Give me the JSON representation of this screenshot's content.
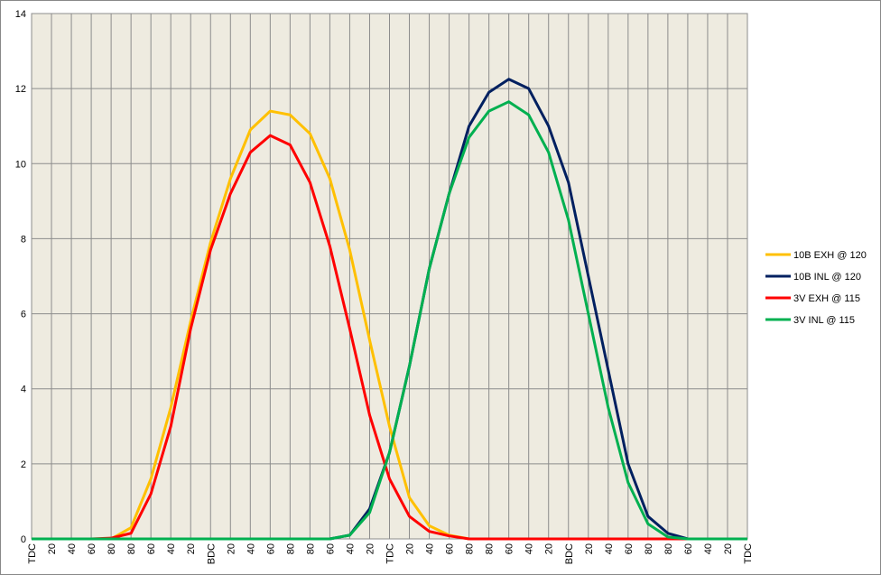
{
  "chart_data": {
    "type": "line",
    "categories": [
      "TDC",
      "20",
      "40",
      "60",
      "80",
      "80",
      "60",
      "40",
      "20",
      "BDC",
      "20",
      "40",
      "60",
      "80",
      "80",
      "60",
      "40",
      "20",
      "TDC",
      "20",
      "40",
      "60",
      "80",
      "80",
      "60",
      "40",
      "20",
      "BDC",
      "20",
      "40",
      "60",
      "80",
      "80",
      "60",
      "40",
      "20",
      "TDC"
    ],
    "series": [
      {
        "name": "10B EXH @ 120",
        "color": "#ffc000",
        "values": [
          0,
          0,
          0,
          0,
          0,
          0.3,
          1.6,
          3.5,
          5.8,
          7.9,
          9.6,
          10.9,
          11.4,
          11.3,
          10.8,
          9.6,
          7.7,
          5.3,
          3.0,
          1.1,
          0.35,
          0.1,
          0,
          0,
          0,
          0,
          0,
          0,
          0,
          0,
          0,
          0,
          0,
          0,
          0,
          0,
          0
        ]
      },
      {
        "name": "10B INL @ 120",
        "color": "#002060",
        "values": [
          0,
          0,
          0,
          0,
          0,
          0,
          0,
          0,
          0,
          0,
          0,
          0,
          0,
          0,
          0,
          0,
          0.1,
          0.8,
          2.3,
          4.6,
          7.2,
          9.2,
          11.0,
          11.9,
          12.25,
          12.0,
          11.0,
          9.5,
          7.0,
          4.5,
          2.0,
          0.6,
          0.15,
          0,
          0,
          0,
          0
        ]
      },
      {
        "name": "3V EXH @ 115",
        "color": "#ff0000",
        "values": [
          0,
          0,
          0,
          0,
          0.02,
          0.15,
          1.2,
          3.0,
          5.6,
          7.7,
          9.2,
          10.3,
          10.75,
          10.5,
          9.5,
          7.8,
          5.6,
          3.3,
          1.6,
          0.6,
          0.2,
          0.08,
          0,
          0,
          0,
          0,
          0,
          0,
          0,
          0,
          0,
          0,
          0,
          0,
          0,
          0,
          0
        ]
      },
      {
        "name": "3V INL @ 115",
        "color": "#00b050",
        "values": [
          0,
          0,
          0,
          0,
          0,
          0,
          0,
          0,
          0,
          0,
          0,
          0,
          0,
          0,
          0,
          0,
          0.1,
          0.7,
          2.3,
          4.6,
          7.2,
          9.2,
          10.7,
          11.4,
          11.65,
          11.3,
          10.3,
          8.5,
          6.0,
          3.5,
          1.5,
          0.4,
          0.05,
          0,
          0,
          0,
          0
        ]
      }
    ],
    "ylim": [
      0,
      14
    ],
    "yticks": [
      0,
      2,
      4,
      6,
      8,
      10,
      12,
      14
    ],
    "grid": true,
    "legend_position": "right"
  }
}
